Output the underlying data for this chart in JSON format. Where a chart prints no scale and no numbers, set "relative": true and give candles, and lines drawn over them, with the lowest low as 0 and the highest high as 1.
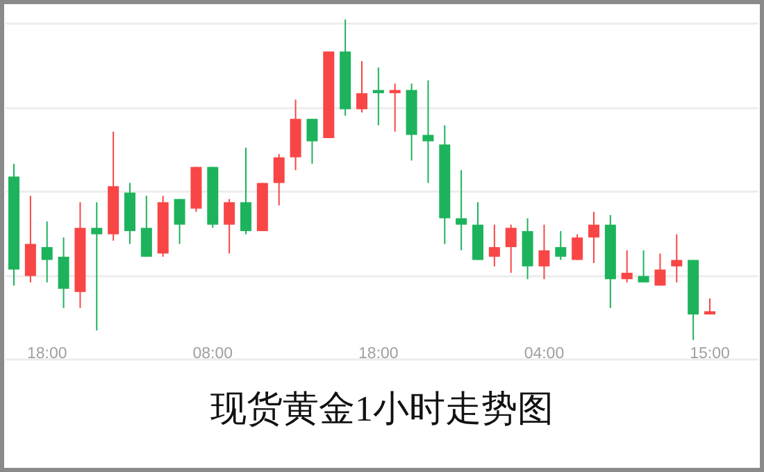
{
  "chart_data": {
    "type": "candlestick",
    "title": "现货黄金1小时走势图",
    "relative": true,
    "grid": "y",
    "categories": [
      null,
      null,
      "18:00",
      null,
      null,
      null,
      null,
      null,
      null,
      null,
      null,
      null,
      "08:00",
      null,
      null,
      null,
      null,
      null,
      null,
      null,
      null,
      null,
      "18:00",
      null,
      null,
      null,
      null,
      null,
      null,
      null,
      null,
      null,
      "04:00",
      null,
      null,
      null,
      null,
      null,
      null,
      null,
      null,
      null,
      "15:00"
    ],
    "ohlc": [
      [
        0.51,
        0.55,
        0.17,
        0.22
      ],
      [
        0.2,
        0.45,
        0.18,
        0.3
      ],
      [
        0.29,
        0.37,
        0.18,
        0.25
      ],
      [
        0.26,
        0.32,
        0.1,
        0.16
      ],
      [
        0.15,
        0.43,
        0.1,
        0.35
      ],
      [
        0.35,
        0.43,
        0.03,
        0.33
      ],
      [
        0.33,
        0.65,
        0.31,
        0.48
      ],
      [
        0.46,
        0.49,
        0.3,
        0.34
      ],
      [
        0.35,
        0.45,
        0.26,
        0.26
      ],
      [
        0.27,
        0.45,
        0.26,
        0.43
      ],
      [
        0.44,
        0.44,
        0.3,
        0.36
      ],
      [
        0.41,
        0.54,
        0.4,
        0.54
      ],
      [
        0.54,
        0.54,
        0.35,
        0.36
      ],
      [
        0.36,
        0.44,
        0.27,
        0.43
      ],
      [
        0.43,
        0.6,
        0.33,
        0.34
      ],
      [
        0.34,
        0.49,
        0.34,
        0.49
      ],
      [
        0.49,
        0.58,
        0.42,
        0.57
      ],
      [
        0.57,
        0.75,
        0.53,
        0.69
      ],
      [
        0.69,
        0.69,
        0.55,
        0.62
      ],
      [
        0.63,
        0.9,
        0.63,
        0.9
      ],
      [
        0.9,
        1,
        0.7,
        0.72
      ],
      [
        0.72,
        0.87,
        0.71,
        0.77
      ],
      [
        0.78,
        0.85,
        0.67,
        0.77
      ],
      [
        0.77,
        0.8,
        0.65,
        0.78
      ],
      [
        0.78,
        0.8,
        0.56,
        0.64
      ],
      [
        0.64,
        0.81,
        0.49,
        0.62
      ],
      [
        0.61,
        0.67,
        0.3,
        0.38
      ],
      [
        0.38,
        0.53,
        0.28,
        0.36
      ],
      [
        0.36,
        0.43,
        0.25,
        0.25
      ],
      [
        0.26,
        0.36,
        0.23,
        0.29
      ],
      [
        0.29,
        0.36,
        0.21,
        0.35
      ],
      [
        0.34,
        0.38,
        0.19,
        0.23
      ],
      [
        0.23,
        0.36,
        0.19,
        0.28
      ],
      [
        0.29,
        0.34,
        0.25,
        0.26
      ],
      [
        0.25,
        0.33,
        0.25,
        0.32
      ],
      [
        0.32,
        0.4,
        0.24,
        0.36
      ],
      [
        0.36,
        0.39,
        0.1,
        0.19
      ],
      [
        0.19,
        0.28,
        0.18,
        0.21
      ],
      [
        0.2,
        0.28,
        0.18,
        0.18
      ],
      [
        0.17,
        0.27,
        0.17,
        0.22
      ],
      [
        0.23,
        0.33,
        0.18,
        0.25
      ],
      [
        0.25,
        0.25,
        0,
        0.08
      ],
      [
        0.08,
        0.13,
        0.08,
        0.09
      ]
    ],
    "colors": [
      "#1db35c",
      "#f84646",
      "#1db35c",
      "#1db35c",
      "#f84646",
      "#1db35c",
      "#f84646",
      "#1db35c",
      "#1db35c",
      "#f84646",
      "#1db35c",
      "#f84646",
      "#1db35c",
      "#f84646",
      "#1db35c",
      "#f84646",
      "#f84646",
      "#f84646",
      "#1db35c",
      "#f84646",
      "#1db35c",
      "#f84646",
      "#1db35c",
      "#f84646",
      "#1db35c",
      "#1db35c",
      "#1db35c",
      "#1db35c",
      "#1db35c",
      "#f84646",
      "#f84646",
      "#1db35c",
      "#f84646",
      "#1db35c",
      "#f84646",
      "#f84646",
      "#1db35c",
      "#f84646",
      "#1db35c",
      "#f84646",
      "#f84646",
      "#1db35c",
      "#f84646"
    ]
  }
}
